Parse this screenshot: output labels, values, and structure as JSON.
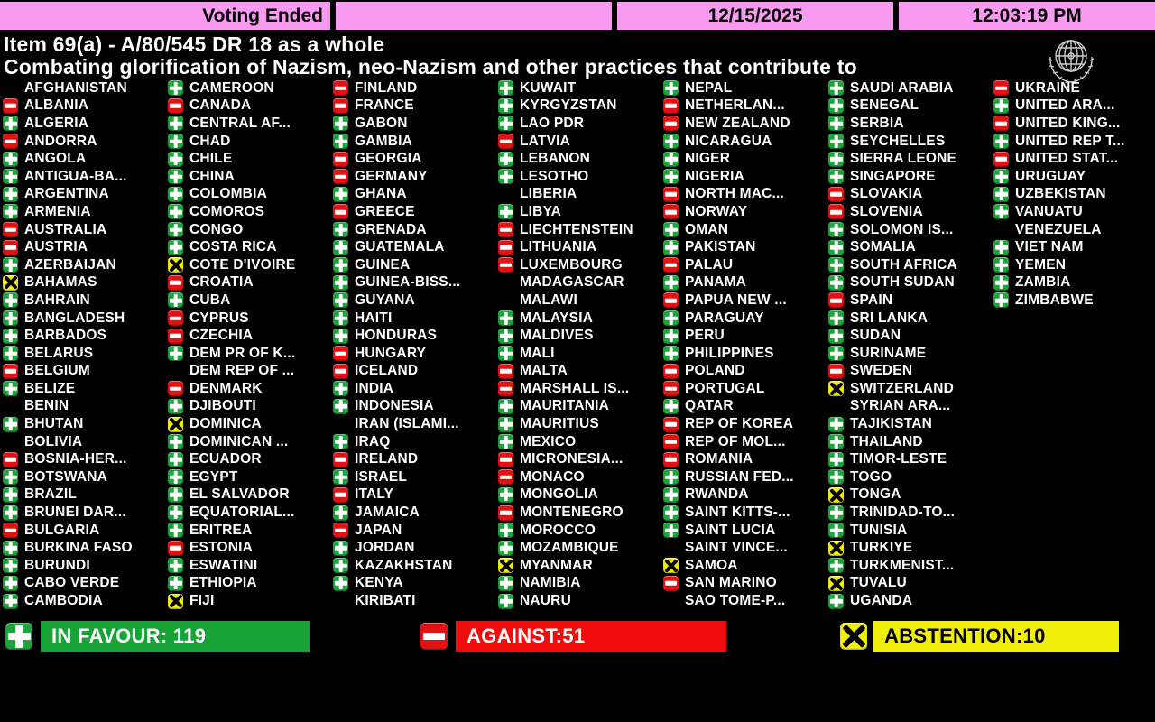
{
  "header": {
    "status": "Voting Ended",
    "date": "12/15/2025",
    "time": "12:03:19 PM"
  },
  "title": {
    "line1": "Item 69(a) - A/80/545 DR 18 as a whole",
    "line2": "Combating glorification of Nazism, neo-Nazism and other practices that contribute to"
  },
  "vote_legend": {
    "Y": "in favour",
    "N": "against",
    "A": "abstention",
    "": "did not vote"
  },
  "summary": {
    "in_favour_label": "IN FAVOUR: 119",
    "against_label": "AGAINST:51",
    "abstention_label": "ABSTENTION:10",
    "in_favour_count": 119,
    "against_count": 51,
    "abstention_count": 10
  },
  "colors": {
    "header_pink": "#F79AF0",
    "favour_green": "#17A336",
    "against_red": "#F10C0C",
    "abstain_yellow": "#F2EE0C"
  },
  "columns": [
    [
      {
        "name": "AFGHANISTAN",
        "vote": ""
      },
      {
        "name": "ALBANIA",
        "vote": "N"
      },
      {
        "name": "ALGERIA",
        "vote": "Y"
      },
      {
        "name": "ANDORRA",
        "vote": "N"
      },
      {
        "name": "ANGOLA",
        "vote": "Y"
      },
      {
        "name": "ANTIGUA-BA...",
        "vote": "Y"
      },
      {
        "name": "ARGENTINA",
        "vote": "Y"
      },
      {
        "name": "ARMENIA",
        "vote": "Y"
      },
      {
        "name": "AUSTRALIA",
        "vote": "N"
      },
      {
        "name": "AUSTRIA",
        "vote": "N"
      },
      {
        "name": "AZERBAIJAN",
        "vote": "Y"
      },
      {
        "name": "BAHAMAS",
        "vote": "A"
      },
      {
        "name": "BAHRAIN",
        "vote": "Y"
      },
      {
        "name": "BANGLADESH",
        "vote": "Y"
      },
      {
        "name": "BARBADOS",
        "vote": "Y"
      },
      {
        "name": "BELARUS",
        "vote": "Y"
      },
      {
        "name": "BELGIUM",
        "vote": "N"
      },
      {
        "name": "BELIZE",
        "vote": "Y"
      },
      {
        "name": "BENIN",
        "vote": ""
      },
      {
        "name": "BHUTAN",
        "vote": "Y"
      },
      {
        "name": "BOLIVIA",
        "vote": ""
      },
      {
        "name": "BOSNIA-HER...",
        "vote": "N"
      },
      {
        "name": "BOTSWANA",
        "vote": "Y"
      },
      {
        "name": "BRAZIL",
        "vote": "Y"
      },
      {
        "name": "BRUNEI DAR...",
        "vote": "Y"
      },
      {
        "name": "BULGARIA",
        "vote": "N"
      },
      {
        "name": "BURKINA FASO",
        "vote": "Y"
      },
      {
        "name": "BURUNDI",
        "vote": "Y"
      },
      {
        "name": "CABO VERDE",
        "vote": "Y"
      },
      {
        "name": "CAMBODIA",
        "vote": "Y"
      }
    ],
    [
      {
        "name": "CAMEROON",
        "vote": "Y"
      },
      {
        "name": "CANADA",
        "vote": "N"
      },
      {
        "name": "CENTRAL AF...",
        "vote": "Y"
      },
      {
        "name": "CHAD",
        "vote": "Y"
      },
      {
        "name": "CHILE",
        "vote": "Y"
      },
      {
        "name": "CHINA",
        "vote": "Y"
      },
      {
        "name": "COLOMBIA",
        "vote": "Y"
      },
      {
        "name": "COMOROS",
        "vote": "Y"
      },
      {
        "name": "CONGO",
        "vote": "Y"
      },
      {
        "name": "COSTA RICA",
        "vote": "Y"
      },
      {
        "name": "COTE D'IVOIRE",
        "vote": "A"
      },
      {
        "name": "CROATIA",
        "vote": "N"
      },
      {
        "name": "CUBA",
        "vote": "Y"
      },
      {
        "name": "CYPRUS",
        "vote": "N"
      },
      {
        "name": "CZECHIA",
        "vote": "N"
      },
      {
        "name": "DEM PR OF K...",
        "vote": "Y"
      },
      {
        "name": "DEM REP OF ...",
        "vote": ""
      },
      {
        "name": "DENMARK",
        "vote": "N"
      },
      {
        "name": "DJIBOUTI",
        "vote": "Y"
      },
      {
        "name": "DOMINICA",
        "vote": "A"
      },
      {
        "name": "DOMINICAN ...",
        "vote": "Y"
      },
      {
        "name": "ECUADOR",
        "vote": "Y"
      },
      {
        "name": "EGYPT",
        "vote": "Y"
      },
      {
        "name": "EL SALVADOR",
        "vote": "Y"
      },
      {
        "name": "EQUATORIAL...",
        "vote": "Y"
      },
      {
        "name": "ERITREA",
        "vote": "Y"
      },
      {
        "name": "ESTONIA",
        "vote": "N"
      },
      {
        "name": "ESWATINI",
        "vote": "Y"
      },
      {
        "name": "ETHIOPIA",
        "vote": "Y"
      },
      {
        "name": "FIJI",
        "vote": "A"
      }
    ],
    [
      {
        "name": "FINLAND",
        "vote": "N"
      },
      {
        "name": "FRANCE",
        "vote": "N"
      },
      {
        "name": "GABON",
        "vote": "Y"
      },
      {
        "name": "GAMBIA",
        "vote": "Y"
      },
      {
        "name": "GEORGIA",
        "vote": "N"
      },
      {
        "name": "GERMANY",
        "vote": "N"
      },
      {
        "name": "GHANA",
        "vote": "Y"
      },
      {
        "name": "GREECE",
        "vote": "N"
      },
      {
        "name": "GRENADA",
        "vote": "Y"
      },
      {
        "name": "GUATEMALA",
        "vote": "Y"
      },
      {
        "name": "GUINEA",
        "vote": "Y"
      },
      {
        "name": "GUINEA-BISS...",
        "vote": "Y"
      },
      {
        "name": "GUYANA",
        "vote": "Y"
      },
      {
        "name": "HAITI",
        "vote": "Y"
      },
      {
        "name": "HONDURAS",
        "vote": "Y"
      },
      {
        "name": "HUNGARY",
        "vote": "N"
      },
      {
        "name": "ICELAND",
        "vote": "N"
      },
      {
        "name": "INDIA",
        "vote": "Y"
      },
      {
        "name": "INDONESIA",
        "vote": "Y"
      },
      {
        "name": "IRAN (ISLAMI...",
        "vote": ""
      },
      {
        "name": "IRAQ",
        "vote": "Y"
      },
      {
        "name": "IRELAND",
        "vote": "N"
      },
      {
        "name": "ISRAEL",
        "vote": "Y"
      },
      {
        "name": "ITALY",
        "vote": "N"
      },
      {
        "name": "JAMAICA",
        "vote": "Y"
      },
      {
        "name": "JAPAN",
        "vote": "N"
      },
      {
        "name": "JORDAN",
        "vote": "Y"
      },
      {
        "name": "KAZAKHSTAN",
        "vote": "Y"
      },
      {
        "name": "KENYA",
        "vote": "Y"
      },
      {
        "name": "KIRIBATI",
        "vote": ""
      }
    ],
    [
      {
        "name": "KUWAIT",
        "vote": "Y"
      },
      {
        "name": "KYRGYZSTAN",
        "vote": "Y"
      },
      {
        "name": "LAO PDR",
        "vote": "Y"
      },
      {
        "name": "LATVIA",
        "vote": "N"
      },
      {
        "name": "LEBANON",
        "vote": "Y"
      },
      {
        "name": "LESOTHO",
        "vote": "Y"
      },
      {
        "name": "LIBERIA",
        "vote": ""
      },
      {
        "name": "LIBYA",
        "vote": "Y"
      },
      {
        "name": "LIECHTENSTEIN",
        "vote": "N"
      },
      {
        "name": "LITHUANIA",
        "vote": "N"
      },
      {
        "name": "LUXEMBOURG",
        "vote": "N"
      },
      {
        "name": "MADAGASCAR",
        "vote": ""
      },
      {
        "name": "MALAWI",
        "vote": ""
      },
      {
        "name": "MALAYSIA",
        "vote": "Y"
      },
      {
        "name": "MALDIVES",
        "vote": "Y"
      },
      {
        "name": "MALI",
        "vote": "Y"
      },
      {
        "name": "MALTA",
        "vote": "N"
      },
      {
        "name": "MARSHALL IS...",
        "vote": "N"
      },
      {
        "name": "MAURITANIA",
        "vote": "Y"
      },
      {
        "name": "MAURITIUS",
        "vote": "Y"
      },
      {
        "name": "MEXICO",
        "vote": "Y"
      },
      {
        "name": "MICRONESIA...",
        "vote": "N"
      },
      {
        "name": "MONACO",
        "vote": "N"
      },
      {
        "name": "MONGOLIA",
        "vote": "Y"
      },
      {
        "name": "MONTENEGRO",
        "vote": "N"
      },
      {
        "name": "MOROCCO",
        "vote": "Y"
      },
      {
        "name": "MOZAMBIQUE",
        "vote": "Y"
      },
      {
        "name": "MYANMAR",
        "vote": "A"
      },
      {
        "name": "NAMIBIA",
        "vote": "Y"
      },
      {
        "name": "NAURU",
        "vote": "Y"
      }
    ],
    [
      {
        "name": "NEPAL",
        "vote": "Y"
      },
      {
        "name": "NETHERLAN...",
        "vote": "N"
      },
      {
        "name": "NEW ZEALAND",
        "vote": "N"
      },
      {
        "name": "NICARAGUA",
        "vote": "Y"
      },
      {
        "name": "NIGER",
        "vote": "Y"
      },
      {
        "name": "NIGERIA",
        "vote": "Y"
      },
      {
        "name": "NORTH MAC...",
        "vote": "N"
      },
      {
        "name": "NORWAY",
        "vote": "N"
      },
      {
        "name": "OMAN",
        "vote": "Y"
      },
      {
        "name": "PAKISTAN",
        "vote": "Y"
      },
      {
        "name": "PALAU",
        "vote": "N"
      },
      {
        "name": "PANAMA",
        "vote": "Y"
      },
      {
        "name": "PAPUA NEW ...",
        "vote": "N"
      },
      {
        "name": "PARAGUAY",
        "vote": "Y"
      },
      {
        "name": "PERU",
        "vote": "Y"
      },
      {
        "name": "PHILIPPINES",
        "vote": "Y"
      },
      {
        "name": "POLAND",
        "vote": "N"
      },
      {
        "name": "PORTUGAL",
        "vote": "N"
      },
      {
        "name": "QATAR",
        "vote": "Y"
      },
      {
        "name": "REP OF KOREA",
        "vote": "N"
      },
      {
        "name": "REP OF MOL...",
        "vote": "N"
      },
      {
        "name": "ROMANIA",
        "vote": "N"
      },
      {
        "name": "RUSSIAN FED...",
        "vote": "Y"
      },
      {
        "name": "RWANDA",
        "vote": "Y"
      },
      {
        "name": "SAINT KITTS-...",
        "vote": "Y"
      },
      {
        "name": "SAINT LUCIA",
        "vote": "Y"
      },
      {
        "name": "SAINT VINCE...",
        "vote": ""
      },
      {
        "name": "SAMOA",
        "vote": "A"
      },
      {
        "name": "SAN MARINO",
        "vote": "N"
      },
      {
        "name": "SAO TOME-P...",
        "vote": ""
      }
    ],
    [
      {
        "name": "SAUDI ARABIA",
        "vote": "Y"
      },
      {
        "name": "SENEGAL",
        "vote": "Y"
      },
      {
        "name": "SERBIA",
        "vote": "Y"
      },
      {
        "name": "SEYCHELLES",
        "vote": "Y"
      },
      {
        "name": "SIERRA LEONE",
        "vote": "Y"
      },
      {
        "name": "SINGAPORE",
        "vote": "Y"
      },
      {
        "name": "SLOVAKIA",
        "vote": "N"
      },
      {
        "name": "SLOVENIA",
        "vote": "N"
      },
      {
        "name": "SOLOMON IS...",
        "vote": "Y"
      },
      {
        "name": "SOMALIA",
        "vote": "Y"
      },
      {
        "name": "SOUTH AFRICA",
        "vote": "Y"
      },
      {
        "name": "SOUTH SUDAN",
        "vote": "Y"
      },
      {
        "name": "SPAIN",
        "vote": "N"
      },
      {
        "name": "SRI LANKA",
        "vote": "Y"
      },
      {
        "name": "SUDAN",
        "vote": "Y"
      },
      {
        "name": "SURINAME",
        "vote": "Y"
      },
      {
        "name": "SWEDEN",
        "vote": "N"
      },
      {
        "name": "SWITZERLAND",
        "vote": "A"
      },
      {
        "name": "SYRIAN ARA...",
        "vote": ""
      },
      {
        "name": "TAJIKISTAN",
        "vote": "Y"
      },
      {
        "name": "THAILAND",
        "vote": "Y"
      },
      {
        "name": "TIMOR-LESTE",
        "vote": "Y"
      },
      {
        "name": "TOGO",
        "vote": "Y"
      },
      {
        "name": "TONGA",
        "vote": "A"
      },
      {
        "name": "TRINIDAD-TO...",
        "vote": "Y"
      },
      {
        "name": "TUNISIA",
        "vote": "Y"
      },
      {
        "name": "TURKIYE",
        "vote": "A"
      },
      {
        "name": "TURKMENIST...",
        "vote": "Y"
      },
      {
        "name": "TUVALU",
        "vote": "A"
      },
      {
        "name": "UGANDA",
        "vote": "Y"
      }
    ],
    [
      {
        "name": "UKRAINE",
        "vote": "N"
      },
      {
        "name": "UNITED ARA...",
        "vote": "Y"
      },
      {
        "name": "UNITED KING...",
        "vote": "N"
      },
      {
        "name": "UNITED REP T...",
        "vote": "Y"
      },
      {
        "name": "UNITED STAT...",
        "vote": "N"
      },
      {
        "name": "URUGUAY",
        "vote": "Y"
      },
      {
        "name": "UZBEKISTAN",
        "vote": "Y"
      },
      {
        "name": "VANUATU",
        "vote": "Y"
      },
      {
        "name": "VENEZUELA",
        "vote": ""
      },
      {
        "name": "VIET NAM",
        "vote": "Y"
      },
      {
        "name": "YEMEN",
        "vote": "Y"
      },
      {
        "name": "ZAMBIA",
        "vote": "Y"
      },
      {
        "name": "ZIMBABWE",
        "vote": "Y"
      }
    ]
  ]
}
